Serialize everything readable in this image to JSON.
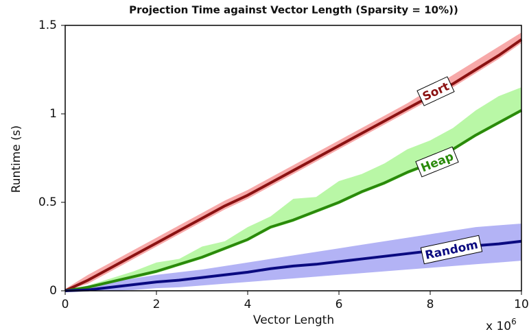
{
  "chart_data": {
    "type": "line",
    "title": "Projection Time against Vector Length (Sparsity = 10%))",
    "x_label": "Vector Length",
    "y_label": "Runtime (s)",
    "x_multiplier": {
      "base": "x 10",
      "exponent": "6"
    },
    "x": [
      0,
      0.5,
      1,
      1.5,
      2,
      2.5,
      3,
      3.5,
      4,
      4.5,
      5,
      5.5,
      6,
      6.5,
      7,
      7.5,
      8,
      8.5,
      9,
      9.5,
      10
    ],
    "xlim": [
      0,
      10
    ],
    "xticks": [
      0,
      2,
      4,
      6,
      8,
      10
    ],
    "ylim": [
      0,
      1.5
    ],
    "yticks": [
      0,
      0.5,
      1,
      1.5
    ],
    "series": [
      {
        "name": "Sort",
        "color": "#8b1212",
        "band_color": "#f7a9a9",
        "values": [
          0,
          0.06,
          0.13,
          0.2,
          0.27,
          0.34,
          0.41,
          0.48,
          0.54,
          0.61,
          0.68,
          0.75,
          0.82,
          0.89,
          0.96,
          1.03,
          1.1,
          1.17,
          1.25,
          1.33,
          1.42
        ],
        "upper": [
          0.01,
          0.09,
          0.16,
          0.23,
          0.3,
          0.37,
          0.44,
          0.51,
          0.57,
          0.64,
          0.71,
          0.78,
          0.85,
          0.92,
          0.99,
          1.06,
          1.14,
          1.22,
          1.3,
          1.38,
          1.46
        ],
        "lower": [
          0,
          0.04,
          0.11,
          0.18,
          0.25,
          0.32,
          0.39,
          0.46,
          0.52,
          0.59,
          0.66,
          0.73,
          0.8,
          0.87,
          0.94,
          1.01,
          1.08,
          1.15,
          1.23,
          1.31,
          1.4
        ]
      },
      {
        "name": "Heap",
        "color": "#2a8a0a",
        "band_color": "#b9f7a6",
        "values": [
          0,
          0.02,
          0.05,
          0.08,
          0.11,
          0.15,
          0.19,
          0.24,
          0.29,
          0.36,
          0.4,
          0.45,
          0.5,
          0.56,
          0.61,
          0.67,
          0.72,
          0.8,
          0.88,
          0.95,
          1.02
        ],
        "upper": [
          0,
          0.03,
          0.07,
          0.11,
          0.16,
          0.18,
          0.25,
          0.28,
          0.36,
          0.42,
          0.52,
          0.53,
          0.62,
          0.66,
          0.72,
          0.8,
          0.85,
          0.92,
          1.02,
          1.1,
          1.15
        ],
        "lower": [
          0,
          0.01,
          0.04,
          0.07,
          0.1,
          0.14,
          0.18,
          0.23,
          0.28,
          0.35,
          0.39,
          0.44,
          0.49,
          0.55,
          0.6,
          0.66,
          0.71,
          0.79,
          0.87,
          0.94,
          1.01
        ]
      },
      {
        "name": "Random",
        "color": "#0a0a80",
        "band_color": "#b3b3f5",
        "values": [
          0,
          0.005,
          0.02,
          0.035,
          0.05,
          0.06,
          0.075,
          0.09,
          0.105,
          0.125,
          0.14,
          0.15,
          0.165,
          0.18,
          0.195,
          0.21,
          0.225,
          0.235,
          0.255,
          0.265,
          0.28
        ],
        "upper": [
          0,
          0.03,
          0.05,
          0.07,
          0.09,
          0.105,
          0.12,
          0.14,
          0.16,
          0.18,
          0.2,
          0.22,
          0.24,
          0.26,
          0.28,
          0.3,
          0.32,
          0.34,
          0.36,
          0.37,
          0.38
        ],
        "lower": [
          0,
          0,
          0,
          0.005,
          0.015,
          0.02,
          0.03,
          0.04,
          0.05,
          0.06,
          0.07,
          0.08,
          0.09,
          0.1,
          0.11,
          0.12,
          0.13,
          0.14,
          0.15,
          0.16,
          0.17
        ]
      }
    ]
  }
}
